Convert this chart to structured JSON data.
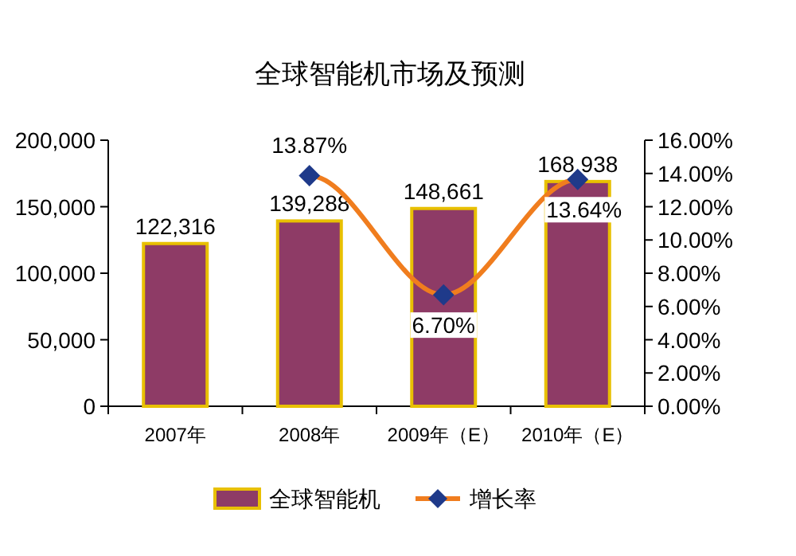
{
  "chart_data": {
    "type": "bar",
    "title": "全球智能机市场及预测",
    "categories": [
      "2007年",
      "2008年",
      "2009年（E）",
      "2010年（E）"
    ],
    "series": [
      {
        "name": "全球智能机",
        "color": "#8e3b66",
        "values": [
          122316,
          139288,
          148661,
          168938
        ],
        "value_labels": [
          "122,316",
          "139,288",
          "148,661",
          "168,938"
        ]
      },
      {
        "name": "增长率",
        "type": "line",
        "axis": "y2",
        "color": "#f07d1e",
        "values": [
          null,
          13.87,
          6.7,
          13.64
        ],
        "value_labels": [
          null,
          "13.87%",
          "6.70%",
          "13.64%"
        ]
      }
    ],
    "ylim": [
      0,
      200000
    ],
    "yticks": [
      {
        "value": 0,
        "label": "0"
      },
      {
        "value": 50000,
        "label": "50,000"
      },
      {
        "value": 100000,
        "label": "100,000"
      },
      {
        "value": 150000,
        "label": "150,000"
      },
      {
        "value": 200000,
        "label": "200,000"
      }
    ],
    "y2lim": [
      0,
      16
    ],
    "y2ticks": [
      {
        "value": 0,
        "label": "0.00%"
      },
      {
        "value": 2,
        "label": "2.00%"
      },
      {
        "value": 4,
        "label": "4.00%"
      },
      {
        "value": 6,
        "label": "6.00%"
      },
      {
        "value": 8,
        "label": "8.00%"
      },
      {
        "value": 10,
        "label": "10.00%"
      },
      {
        "value": 12,
        "label": "12.00%"
      },
      {
        "value": 14,
        "label": "14.00%"
      },
      {
        "value": 16,
        "label": "16.00%"
      }
    ],
    "marker": "diamond",
    "legend": "bottom",
    "grid": false
  }
}
